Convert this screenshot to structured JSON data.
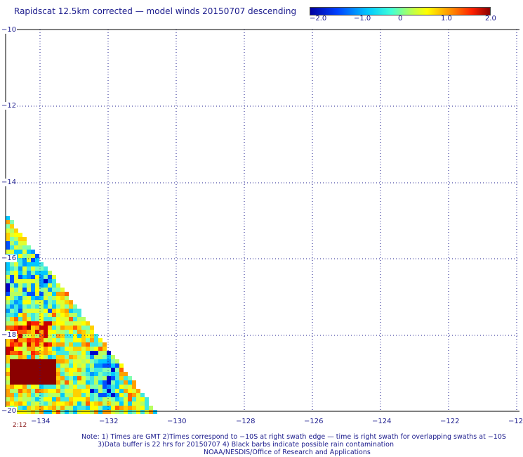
{
  "title": "Rapidscat 12.5km corrected — model winds 20150707 descending",
  "colorbar": {
    "labels": [
      "−2.0",
      "−1.0",
      "0",
      "1.0",
      "2.0"
    ],
    "range": [
      -2.0,
      2.0
    ]
  },
  "lat_labels": [
    "−10",
    "−12",
    "−14",
    "−16",
    "−18",
    "−20"
  ],
  "lon_labels": [
    "−134",
    "−132",
    "−130",
    "−128",
    "−126",
    "−124",
    "−122",
    "−12"
  ],
  "time_label": "2:12",
  "notes": [
    "Note: 1) Times are GMT 2)Times correspond to −10S at right swath edge — time is right swath for overlapping swaths at −10S",
    "3)Data buffer is 22 hrs for 20150707 4) Black barbs indicate possible rain contamination",
    "NOAA/NESDIS/Office of Research and Applications"
  ],
  "map_data": {
    "lat_range": [
      -20,
      -10
    ],
    "lon_range": [
      -135,
      -120
    ],
    "swath": "triangular swath in lower-left corner (about -135 to -131 lon, -15 to -20 lat)",
    "grid": "dotted",
    "colors": {
      "low": "#0000a0",
      "mid": "#40ffd8",
      "zero": "#c8ff40",
      "high": "#ff2000",
      "max": "#8b0000"
    }
  }
}
